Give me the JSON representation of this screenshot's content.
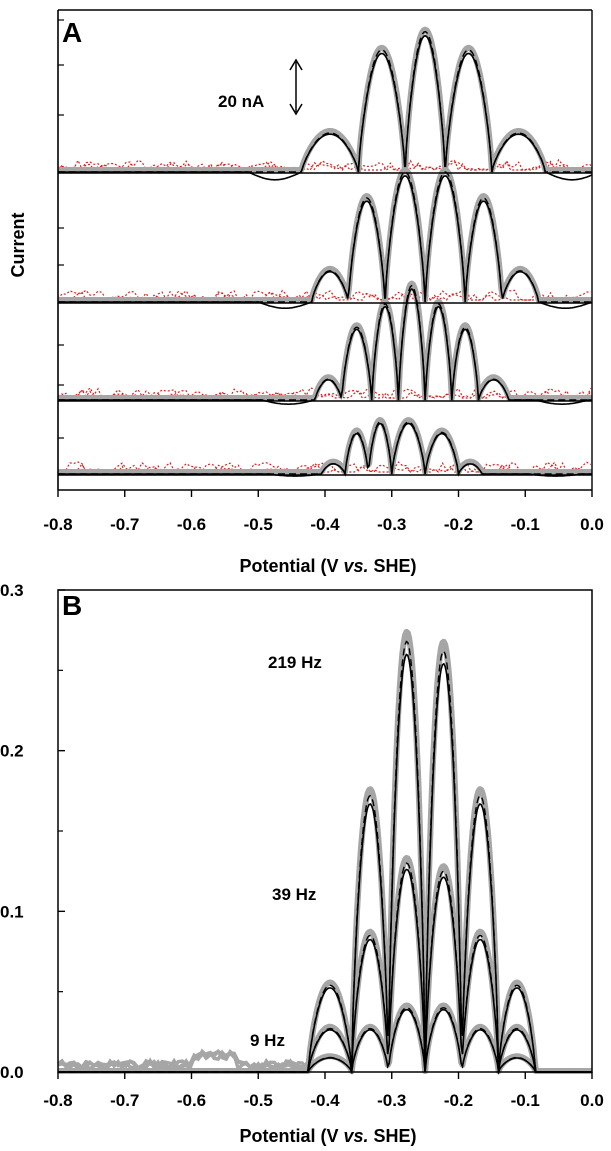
{
  "figure": {
    "panels": [
      {
        "label": "A",
        "type": "line",
        "xlabel_parts": [
          "Potential (V ",
          "vs.",
          " SHE)"
        ],
        "ylabel": "Current",
        "xlim": [
          -0.8,
          0.0
        ],
        "x_ticks": [
          "-0.8",
          "-0.7",
          "-0.6",
          "-0.5",
          "-0.4",
          "-0.3",
          "-0.2",
          "-0.1",
          "0.0"
        ],
        "scale_bar_label": "20 nA",
        "legend": "none",
        "grid": false,
        "stacked_harmonics": 4
      },
      {
        "label": "B",
        "type": "line",
        "xlabel_parts": [
          "Potential (V ",
          "vs.",
          " SHE)"
        ],
        "ylabel": "",
        "xlim": [
          -0.8,
          0.0
        ],
        "ylim": [
          0.0,
          0.3
        ],
        "x_ticks": [
          "-0.8",
          "-0.7",
          "-0.6",
          "-0.5",
          "-0.4",
          "-0.3",
          "-0.2",
          "-0.1",
          "0.0"
        ],
        "y_ticks": [
          "0.0",
          "0.1",
          "0.2",
          "0.3"
        ],
        "annotations": [
          "219 Hz",
          "39 Hz",
          "9 Hz"
        ],
        "legend": "none",
        "grid": false
      }
    ]
  },
  "chart_data": [
    {
      "type": "line",
      "panel": "A",
      "xlim": [
        -0.8,
        0.0
      ],
      "x_center": -0.25,
      "description_series": [
        "experimental (gray thick)",
        "simulated (black solid)",
        "simulated (black dashed)",
        "baseline noise (red dotted)"
      ],
      "lobe_nodes": {
        "harmonic_1": [
          -0.435,
          -0.35,
          -0.28,
          -0.22,
          -0.15,
          -0.07
        ],
        "harmonic_2": [
          -0.42,
          -0.365,
          -0.31,
          -0.25,
          -0.19,
          -0.135,
          -0.08
        ],
        "harmonic_3": [
          -0.415,
          -0.375,
          -0.33,
          -0.29,
          -0.25,
          -0.21,
          -0.17,
          -0.125,
          -0.085
        ],
        "harmonic_4": [
          -0.405,
          -0.37,
          -0.335,
          -0.3,
          -0.25,
          -0.2,
          -0.165,
          -0.13,
          -0.095
        ]
      },
      "peak_heights_nA": {
        "harmonic_1": [
          15,
          47,
          54,
          47,
          15
        ],
        "harmonic_2": [
          12,
          40,
          50,
          50,
          40,
          12
        ],
        "harmonic_3": [
          8,
          28,
          37,
          44,
          37,
          28,
          8
        ],
        "harmonic_4": [
          4,
          16,
          20,
          20,
          16,
          4
        ]
      }
    },
    {
      "type": "line",
      "panel": "B",
      "xlim": [
        -0.8,
        0.0
      ],
      "ylim": [
        0.0,
        0.3
      ],
      "nodes": [
        -0.425,
        -0.36,
        -0.305,
        -0.25,
        -0.195,
        -0.14,
        -0.085
      ],
      "series": [
        {
          "name": "219 Hz",
          "peaks": [
            0.054,
            0.172,
            0.268,
            0.262,
            0.172,
            0.054
          ]
        },
        {
          "name": "39 Hz",
          "peaks": [
            0.027,
            0.085,
            0.13,
            0.125,
            0.085,
            0.027
          ]
        },
        {
          "name": "9 Hz",
          "peaks": [
            0.009,
            0.027,
            0.04,
            0.04,
            0.027,
            0.009
          ]
        }
      ]
    }
  ],
  "colors": {
    "experimental": "#a6a6a6",
    "simulated": "#000000",
    "noise": "#e0201e"
  }
}
